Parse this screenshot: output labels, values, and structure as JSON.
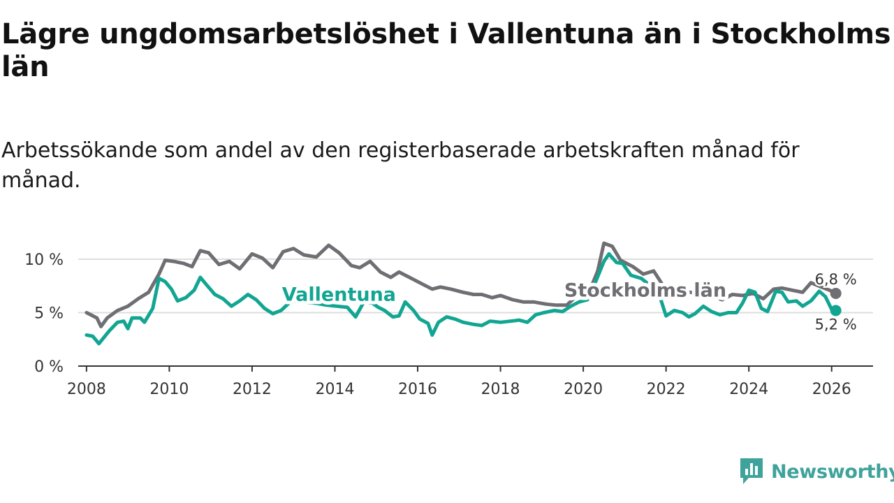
{
  "title": "Lägre ungdomsarbetslöshet i Vallentuna än i Stockholms län",
  "subtitle": "Arbetssökande som andel av den registerbaserade arbetskraften månad för månad.",
  "brand": {
    "name": "Newsworthy",
    "icon": "newsworthy-logo-icon",
    "color": "#3fa39b"
  },
  "colors": {
    "stockholm": "#6e6e73",
    "vallentuna": "#12a592",
    "axis": "#333333",
    "grid": "#dddddd"
  },
  "chart_data": {
    "type": "line",
    "title": "Lägre ungdomsarbetslöshet i Vallentuna än i Stockholms län",
    "xlabel": "",
    "ylabel": "",
    "ylim": [
      0,
      10
    ],
    "xlim": [
      2007.8,
      2027.0
    ],
    "y_ticks": [
      {
        "value": 0,
        "label": "0 %"
      },
      {
        "value": 5,
        "label": "5 %"
      },
      {
        "value": 10,
        "label": "10 %"
      }
    ],
    "x_ticks": [
      "2008",
      "2010",
      "2012",
      "2014",
      "2016",
      "2018",
      "2020",
      "2022",
      "2024",
      "2026"
    ],
    "series": [
      {
        "name": "Stockholms län",
        "end_label": "6,8 %",
        "points": [
          [
            2008.0,
            5.0
          ],
          [
            2008.25,
            4.5
          ],
          [
            2008.35,
            3.7
          ],
          [
            2008.5,
            4.5
          ],
          [
            2008.75,
            5.2
          ],
          [
            2009.0,
            5.6
          ],
          [
            2009.25,
            6.3
          ],
          [
            2009.5,
            6.9
          ],
          [
            2009.75,
            8.6
          ],
          [
            2009.9,
            9.9
          ],
          [
            2010.1,
            9.8
          ],
          [
            2010.35,
            9.6
          ],
          [
            2010.55,
            9.3
          ],
          [
            2010.75,
            10.8
          ],
          [
            2010.95,
            10.6
          ],
          [
            2011.2,
            9.5
          ],
          [
            2011.45,
            9.8
          ],
          [
            2011.7,
            9.1
          ],
          [
            2012.0,
            10.5
          ],
          [
            2012.25,
            10.1
          ],
          [
            2012.5,
            9.2
          ],
          [
            2012.75,
            10.7
          ],
          [
            2013.0,
            11.0
          ],
          [
            2013.25,
            10.4
          ],
          [
            2013.55,
            10.2
          ],
          [
            2013.85,
            11.3
          ],
          [
            2014.1,
            10.6
          ],
          [
            2014.4,
            9.4
          ],
          [
            2014.6,
            9.2
          ],
          [
            2014.85,
            9.8
          ],
          [
            2015.1,
            8.8
          ],
          [
            2015.35,
            8.3
          ],
          [
            2015.55,
            8.8
          ],
          [
            2015.8,
            8.3
          ],
          [
            2016.1,
            7.7
          ],
          [
            2016.35,
            7.2
          ],
          [
            2016.55,
            7.4
          ],
          [
            2016.8,
            7.2
          ],
          [
            2017.1,
            6.9
          ],
          [
            2017.35,
            6.7
          ],
          [
            2017.55,
            6.7
          ],
          [
            2017.8,
            6.4
          ],
          [
            2018.0,
            6.6
          ],
          [
            2018.3,
            6.2
          ],
          [
            2018.55,
            6.0
          ],
          [
            2018.8,
            6.0
          ],
          [
            2019.1,
            5.8
          ],
          [
            2019.35,
            5.7
          ],
          [
            2019.6,
            5.7
          ],
          [
            2019.85,
            6.6
          ],
          [
            2020.15,
            7.0
          ],
          [
            2020.35,
            8.9
          ],
          [
            2020.5,
            11.5
          ],
          [
            2020.7,
            11.2
          ],
          [
            2020.9,
            9.9
          ],
          [
            2021.2,
            9.3
          ],
          [
            2021.45,
            8.6
          ],
          [
            2021.7,
            8.9
          ],
          [
            2021.95,
            7.4
          ],
          [
            2022.2,
            7.0
          ],
          [
            2022.4,
            6.8
          ],
          [
            2022.6,
            6.9
          ],
          [
            2022.85,
            6.7
          ],
          [
            2023.1,
            6.6
          ],
          [
            2023.35,
            6.2
          ],
          [
            2023.6,
            6.7
          ],
          [
            2023.85,
            6.6
          ],
          [
            2024.1,
            6.8
          ],
          [
            2024.35,
            6.3
          ],
          [
            2024.6,
            7.2
          ],
          [
            2024.8,
            7.3
          ],
          [
            2025.05,
            7.1
          ],
          [
            2025.3,
            6.9
          ],
          [
            2025.5,
            7.8
          ],
          [
            2025.75,
            7.4
          ],
          [
            2025.95,
            7.1
          ],
          [
            2026.1,
            6.8
          ]
        ]
      },
      {
        "name": "Vallentuna",
        "end_label": "5,2 %",
        "points": [
          [
            2008.0,
            2.9
          ],
          [
            2008.15,
            2.8
          ],
          [
            2008.3,
            2.1
          ],
          [
            2008.55,
            3.3
          ],
          [
            2008.75,
            4.1
          ],
          [
            2008.9,
            4.2
          ],
          [
            2009.0,
            3.5
          ],
          [
            2009.1,
            4.5
          ],
          [
            2009.3,
            4.5
          ],
          [
            2009.4,
            4.1
          ],
          [
            2009.6,
            5.4
          ],
          [
            2009.75,
            8.2
          ],
          [
            2009.9,
            7.9
          ],
          [
            2010.05,
            7.2
          ],
          [
            2010.2,
            6.1
          ],
          [
            2010.4,
            6.4
          ],
          [
            2010.6,
            7.1
          ],
          [
            2010.75,
            8.3
          ],
          [
            2010.9,
            7.6
          ],
          [
            2011.1,
            6.7
          ],
          [
            2011.3,
            6.3
          ],
          [
            2011.5,
            5.6
          ],
          [
            2011.7,
            6.1
          ],
          [
            2011.9,
            6.7
          ],
          [
            2012.1,
            6.2
          ],
          [
            2012.3,
            5.4
          ],
          [
            2012.5,
            4.9
          ],
          [
            2012.7,
            5.2
          ],
          [
            2012.95,
            6.1
          ],
          [
            2013.2,
            6.0
          ],
          [
            2013.5,
            5.9
          ],
          [
            2013.8,
            5.7
          ],
          [
            2014.05,
            5.6
          ],
          [
            2014.3,
            5.5
          ],
          [
            2014.5,
            4.6
          ],
          [
            2014.7,
            6.0
          ],
          [
            2014.9,
            5.9
          ],
          [
            2015.05,
            5.5
          ],
          [
            2015.2,
            5.2
          ],
          [
            2015.4,
            4.6
          ],
          [
            2015.55,
            4.7
          ],
          [
            2015.7,
            6.0
          ],
          [
            2015.9,
            5.2
          ],
          [
            2016.05,
            4.4
          ],
          [
            2016.25,
            4.0
          ],
          [
            2016.35,
            2.9
          ],
          [
            2016.5,
            4.1
          ],
          [
            2016.7,
            4.6
          ],
          [
            2016.9,
            4.4
          ],
          [
            2017.1,
            4.1
          ],
          [
            2017.35,
            3.9
          ],
          [
            2017.55,
            3.8
          ],
          [
            2017.75,
            4.2
          ],
          [
            2018.0,
            4.1
          ],
          [
            2018.25,
            4.2
          ],
          [
            2018.45,
            4.3
          ],
          [
            2018.65,
            4.1
          ],
          [
            2018.85,
            4.8
          ],
          [
            2019.05,
            5.0
          ],
          [
            2019.3,
            5.2
          ],
          [
            2019.5,
            5.1
          ],
          [
            2019.7,
            5.6
          ],
          [
            2019.9,
            6.0
          ],
          [
            2020.1,
            6.2
          ],
          [
            2020.3,
            7.9
          ],
          [
            2020.5,
            9.8
          ],
          [
            2020.62,
            10.5
          ],
          [
            2020.8,
            9.7
          ],
          [
            2020.95,
            9.6
          ],
          [
            2021.15,
            8.5
          ],
          [
            2021.4,
            8.2
          ],
          [
            2021.6,
            7.6
          ],
          [
            2021.85,
            6.5
          ],
          [
            2022.0,
            4.7
          ],
          [
            2022.2,
            5.2
          ],
          [
            2022.4,
            5.0
          ],
          [
            2022.55,
            4.6
          ],
          [
            2022.7,
            4.9
          ],
          [
            2022.9,
            5.6
          ],
          [
            2023.1,
            5.1
          ],
          [
            2023.3,
            4.8
          ],
          [
            2023.5,
            5.0
          ],
          [
            2023.7,
            5.0
          ],
          [
            2023.85,
            5.9
          ],
          [
            2024.0,
            7.1
          ],
          [
            2024.15,
            6.9
          ],
          [
            2024.3,
            5.4
          ],
          [
            2024.45,
            5.1
          ],
          [
            2024.65,
            7.0
          ],
          [
            2024.8,
            6.9
          ],
          [
            2024.95,
            6.0
          ],
          [
            2025.15,
            6.1
          ],
          [
            2025.3,
            5.6
          ],
          [
            2025.5,
            6.1
          ],
          [
            2025.7,
            7.0
          ],
          [
            2025.85,
            6.5
          ],
          [
            2026.0,
            5.3
          ],
          [
            2026.1,
            5.2
          ]
        ]
      }
    ],
    "annotations": [
      {
        "text": "Vallentuna",
        "series": "Vallentuna",
        "x": 2014.1,
        "y": 6.1
      },
      {
        "text": "Stockholms län",
        "series": "Stockholms län",
        "x": 2021.5,
        "y": 6.5
      }
    ]
  }
}
